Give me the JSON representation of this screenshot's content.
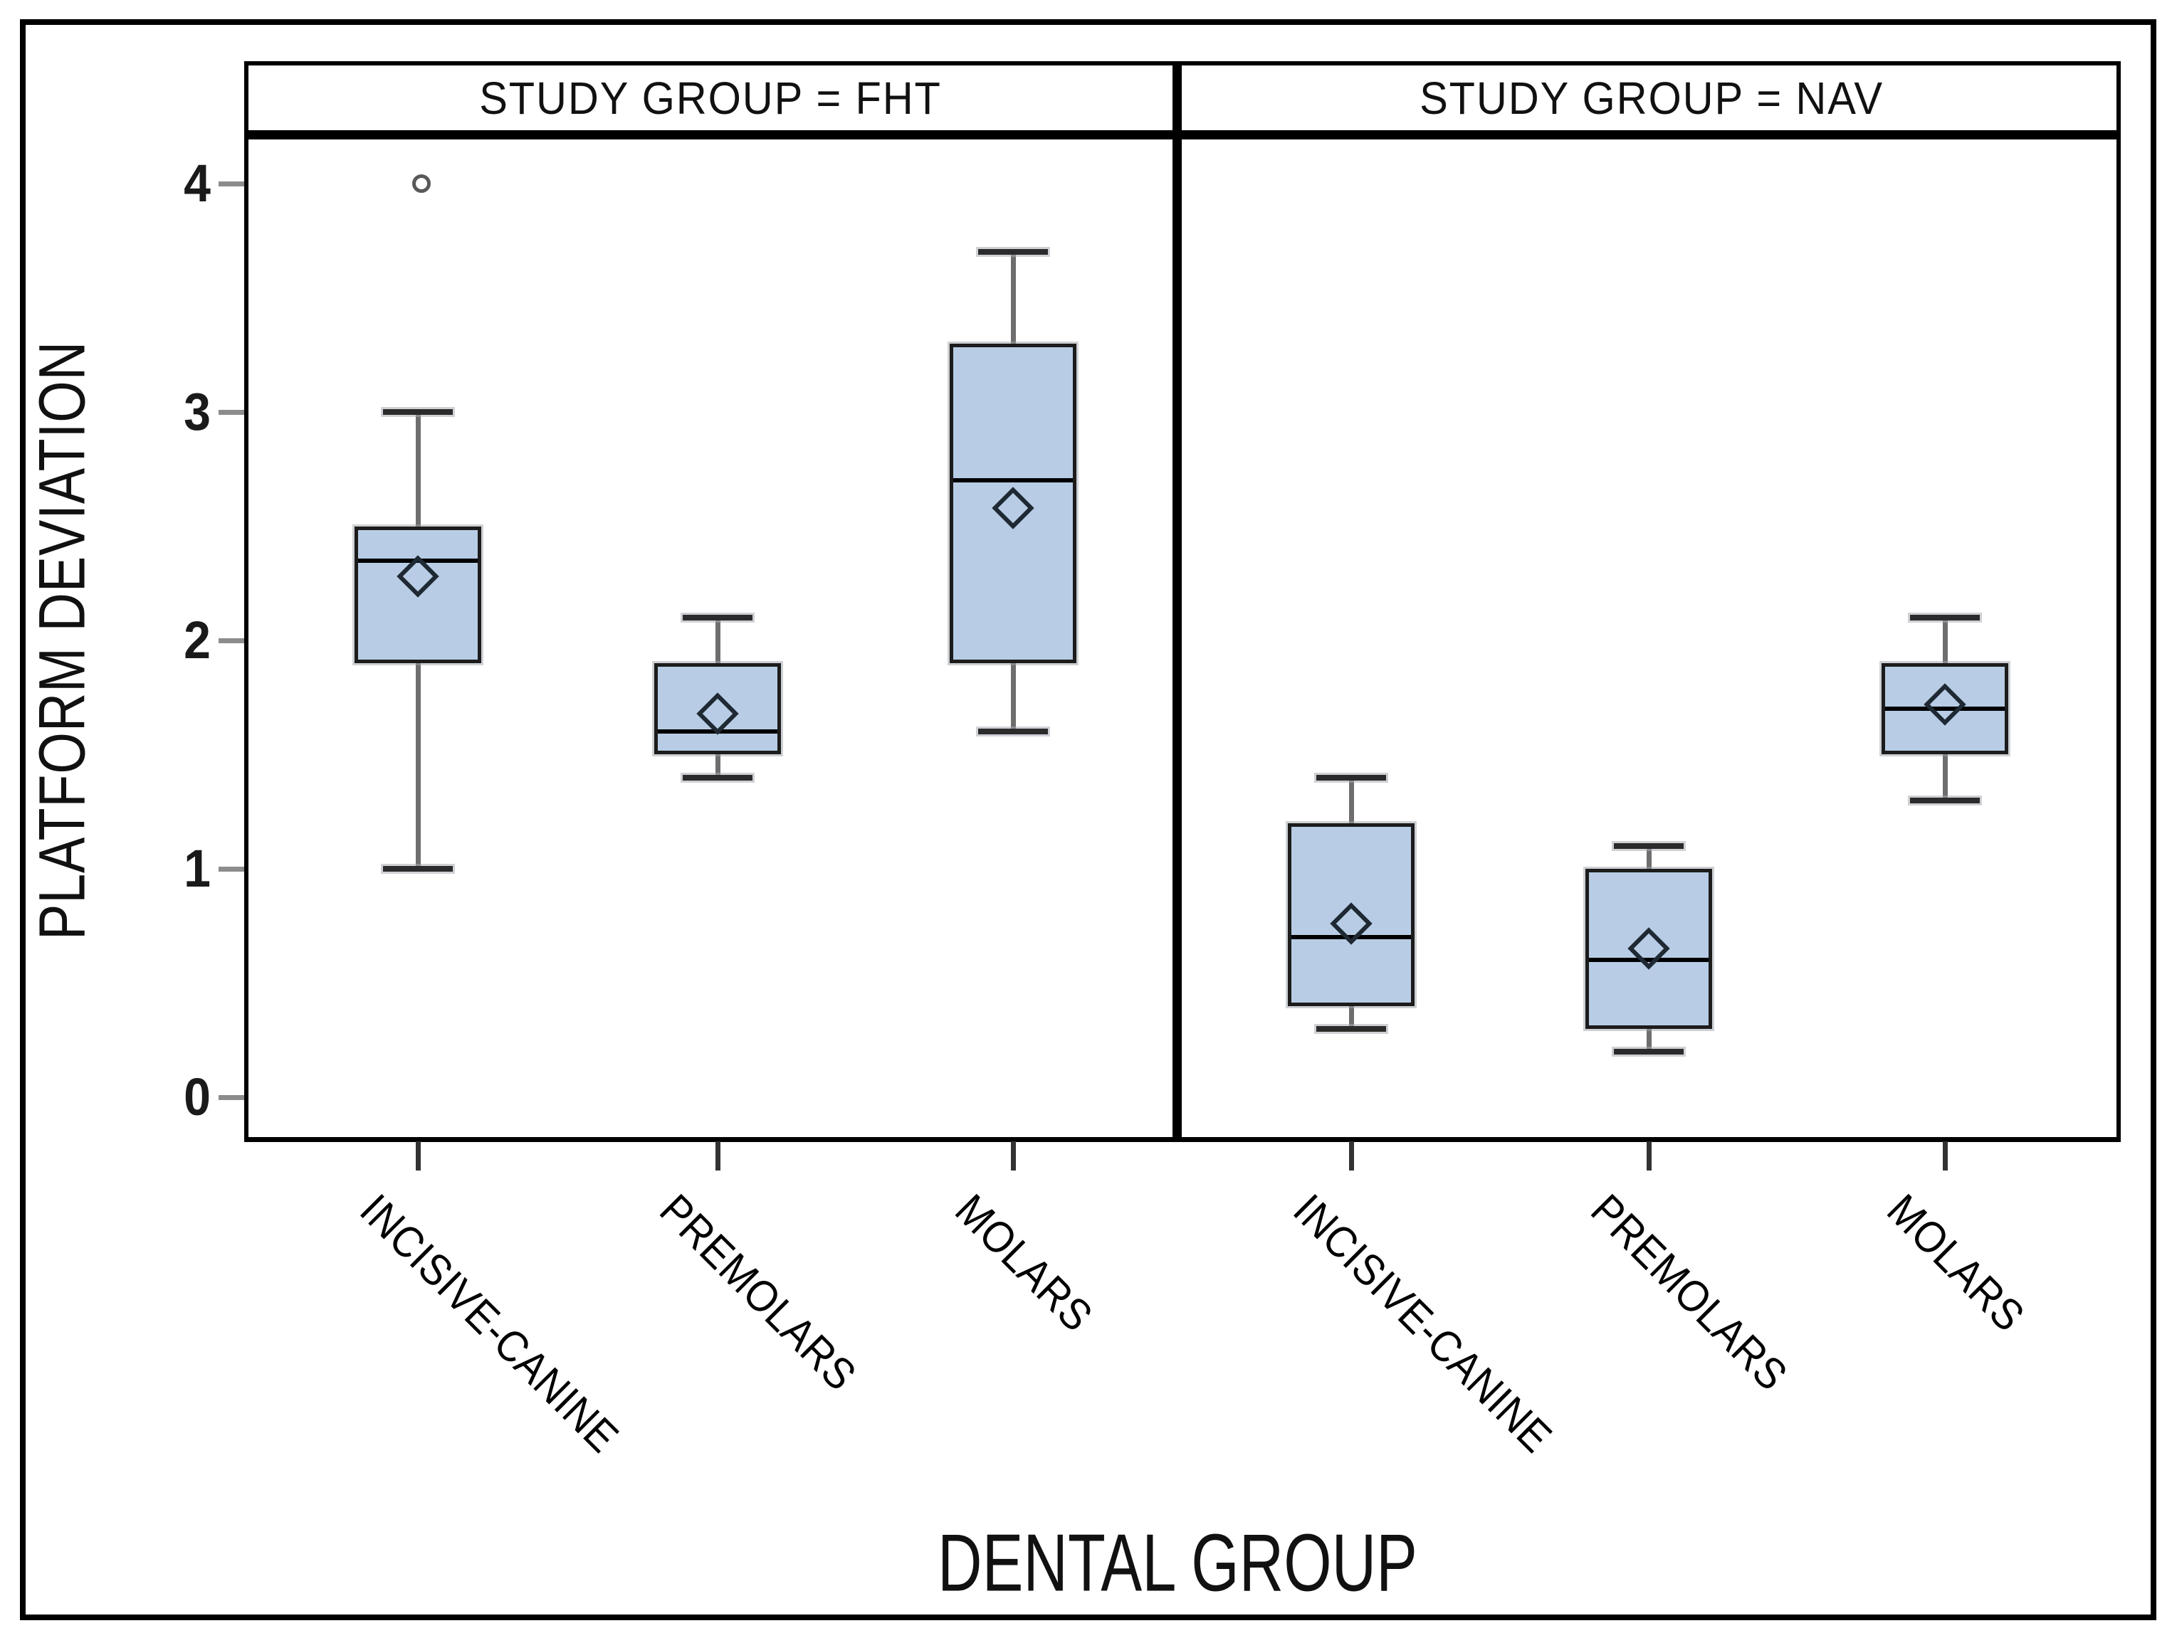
{
  "chart_data": {
    "type": "boxplot",
    "facet_variable": "STUDY GROUP",
    "xlabel": "DENTAL GROUP",
    "ylabel": "PLATFORM DEVIATION",
    "ylim": [
      0,
      4
    ],
    "yticks": [
      0,
      1,
      2,
      3,
      4
    ],
    "grid": false,
    "legend": "none",
    "panels": [
      {
        "label": "STUDY GROUP = FHT",
        "categories": [
          "INCISIVE-CANINE",
          "PREMOLARS",
          "MOLARS"
        ],
        "boxes": [
          {
            "category": "INCISIVE-CANINE",
            "whisker_low": 1.0,
            "q1": 1.9,
            "median": 2.35,
            "q3": 2.5,
            "whisker_high": 3.0,
            "mean": 2.28,
            "outliers": [
              4.0
            ]
          },
          {
            "category": "PREMOLARS",
            "whisker_low": 1.4,
            "q1": 1.5,
            "median": 1.6,
            "q3": 1.9,
            "whisker_high": 2.1,
            "mean": 1.68,
            "outliers": []
          },
          {
            "category": "MOLARS",
            "whisker_low": 1.6,
            "q1": 1.9,
            "median": 2.7,
            "q3": 3.3,
            "whisker_high": 3.7,
            "mean": 2.58,
            "outliers": []
          }
        ]
      },
      {
        "label": "STUDY GROUP = NAV",
        "categories": [
          "INCISIVE-CANINE",
          "PREMOLARS",
          "MOLARS"
        ],
        "boxes": [
          {
            "category": "INCISIVE-CANINE",
            "whisker_low": 0.3,
            "q1": 0.4,
            "median": 0.7,
            "q3": 1.2,
            "whisker_high": 1.4,
            "mean": 0.76,
            "outliers": []
          },
          {
            "category": "PREMOLARS",
            "whisker_low": 0.2,
            "q1": 0.3,
            "median": 0.6,
            "q3": 1.0,
            "whisker_high": 1.1,
            "mean": 0.65,
            "outliers": []
          },
          {
            "category": "MOLARS",
            "whisker_low": 1.3,
            "q1": 1.5,
            "median": 1.7,
            "q3": 1.9,
            "whisker_high": 2.1,
            "mean": 1.72,
            "outliers": []
          }
        ]
      }
    ]
  },
  "style": {
    "box_fill": "#b8cde5",
    "box_border": "#1c1c1c",
    "median_color": "#000000",
    "whisker_color": "#6e6e6e",
    "cap_color": "#2b2b2b",
    "diamond_color": "#1f2933",
    "outlier_color": "#595959",
    "x_tick_color": "#333333",
    "y_tick_color": "#8c8c8c",
    "frame_color": "#000000",
    "text_color": "#111111"
  }
}
